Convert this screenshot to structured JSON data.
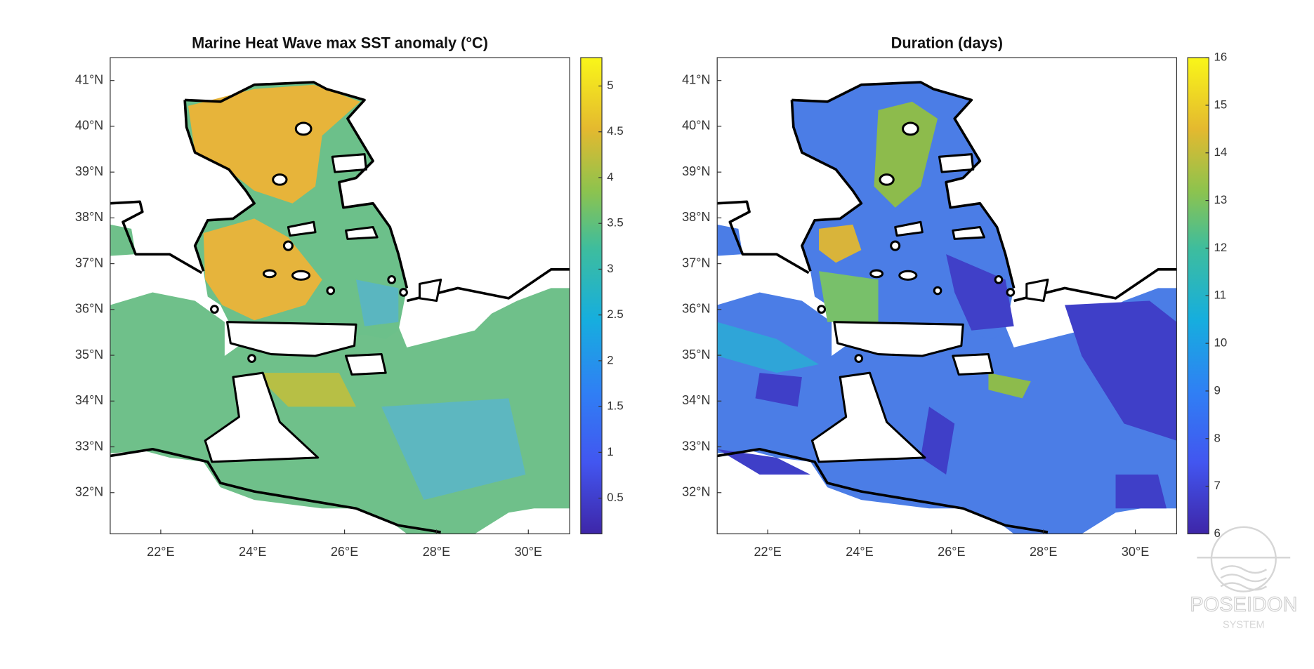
{
  "panels": [
    {
      "title": "Marine Heat Wave max SST anomaly (°C)",
      "xlim": [
        20.9,
        30.9
      ],
      "ylim": [
        31.1,
        41.5
      ],
      "xticks": [
        {
          "value": 22,
          "label": "22°E"
        },
        {
          "value": 24,
          "label": "24°E"
        },
        {
          "value": 26,
          "label": "26°E"
        },
        {
          "value": 28,
          "label": "28°E"
        },
        {
          "value": 30,
          "label": "30°E"
        }
      ],
      "yticks": [
        {
          "value": 32,
          "label": "32°N"
        },
        {
          "value": 33,
          "label": "33°N"
        },
        {
          "value": 34,
          "label": "34°N"
        },
        {
          "value": 35,
          "label": "35°N"
        },
        {
          "value": 36,
          "label": "36°N"
        },
        {
          "value": 37,
          "label": "37°N"
        },
        {
          "value": 38,
          "label": "38°N"
        },
        {
          "value": 39,
          "label": "39°N"
        },
        {
          "value": 40,
          "label": "40°N"
        },
        {
          "value": 41,
          "label": "41°N"
        }
      ],
      "colorbar": {
        "lim": [
          0.11,
          5.31
        ],
        "ticks": [
          0.5,
          1,
          1.5,
          2,
          2.5,
          3,
          3.5,
          4,
          4.5,
          5
        ]
      }
    },
    {
      "title": "Duration (days)",
      "xlim": [
        20.9,
        30.9
      ],
      "ylim": [
        31.1,
        41.5
      ],
      "xticks": [
        {
          "value": 22,
          "label": "22°E"
        },
        {
          "value": 24,
          "label": "24°E"
        },
        {
          "value": 26,
          "label": "26°E"
        },
        {
          "value": 28,
          "label": "28°E"
        },
        {
          "value": 30,
          "label": "30°E"
        }
      ],
      "yticks": [
        {
          "value": 32,
          "label": "32°N"
        },
        {
          "value": 33,
          "label": "33°N"
        },
        {
          "value": 34,
          "label": "34°N"
        },
        {
          "value": 35,
          "label": "35°N"
        },
        {
          "value": 36,
          "label": "36°N"
        },
        {
          "value": 37,
          "label": "37°N"
        },
        {
          "value": 38,
          "label": "38°N"
        },
        {
          "value": 39,
          "label": "39°N"
        },
        {
          "value": 40,
          "label": "40°N"
        },
        {
          "value": 41,
          "label": "41°N"
        }
      ],
      "colorbar": {
        "lim": [
          6,
          16
        ],
        "ticks": [
          6,
          7,
          8,
          9,
          10,
          11,
          12,
          13,
          14,
          15,
          16
        ]
      }
    }
  ],
  "watermark": {
    "name": "POSEIDON",
    "subtitle": "SYSTEM"
  }
}
